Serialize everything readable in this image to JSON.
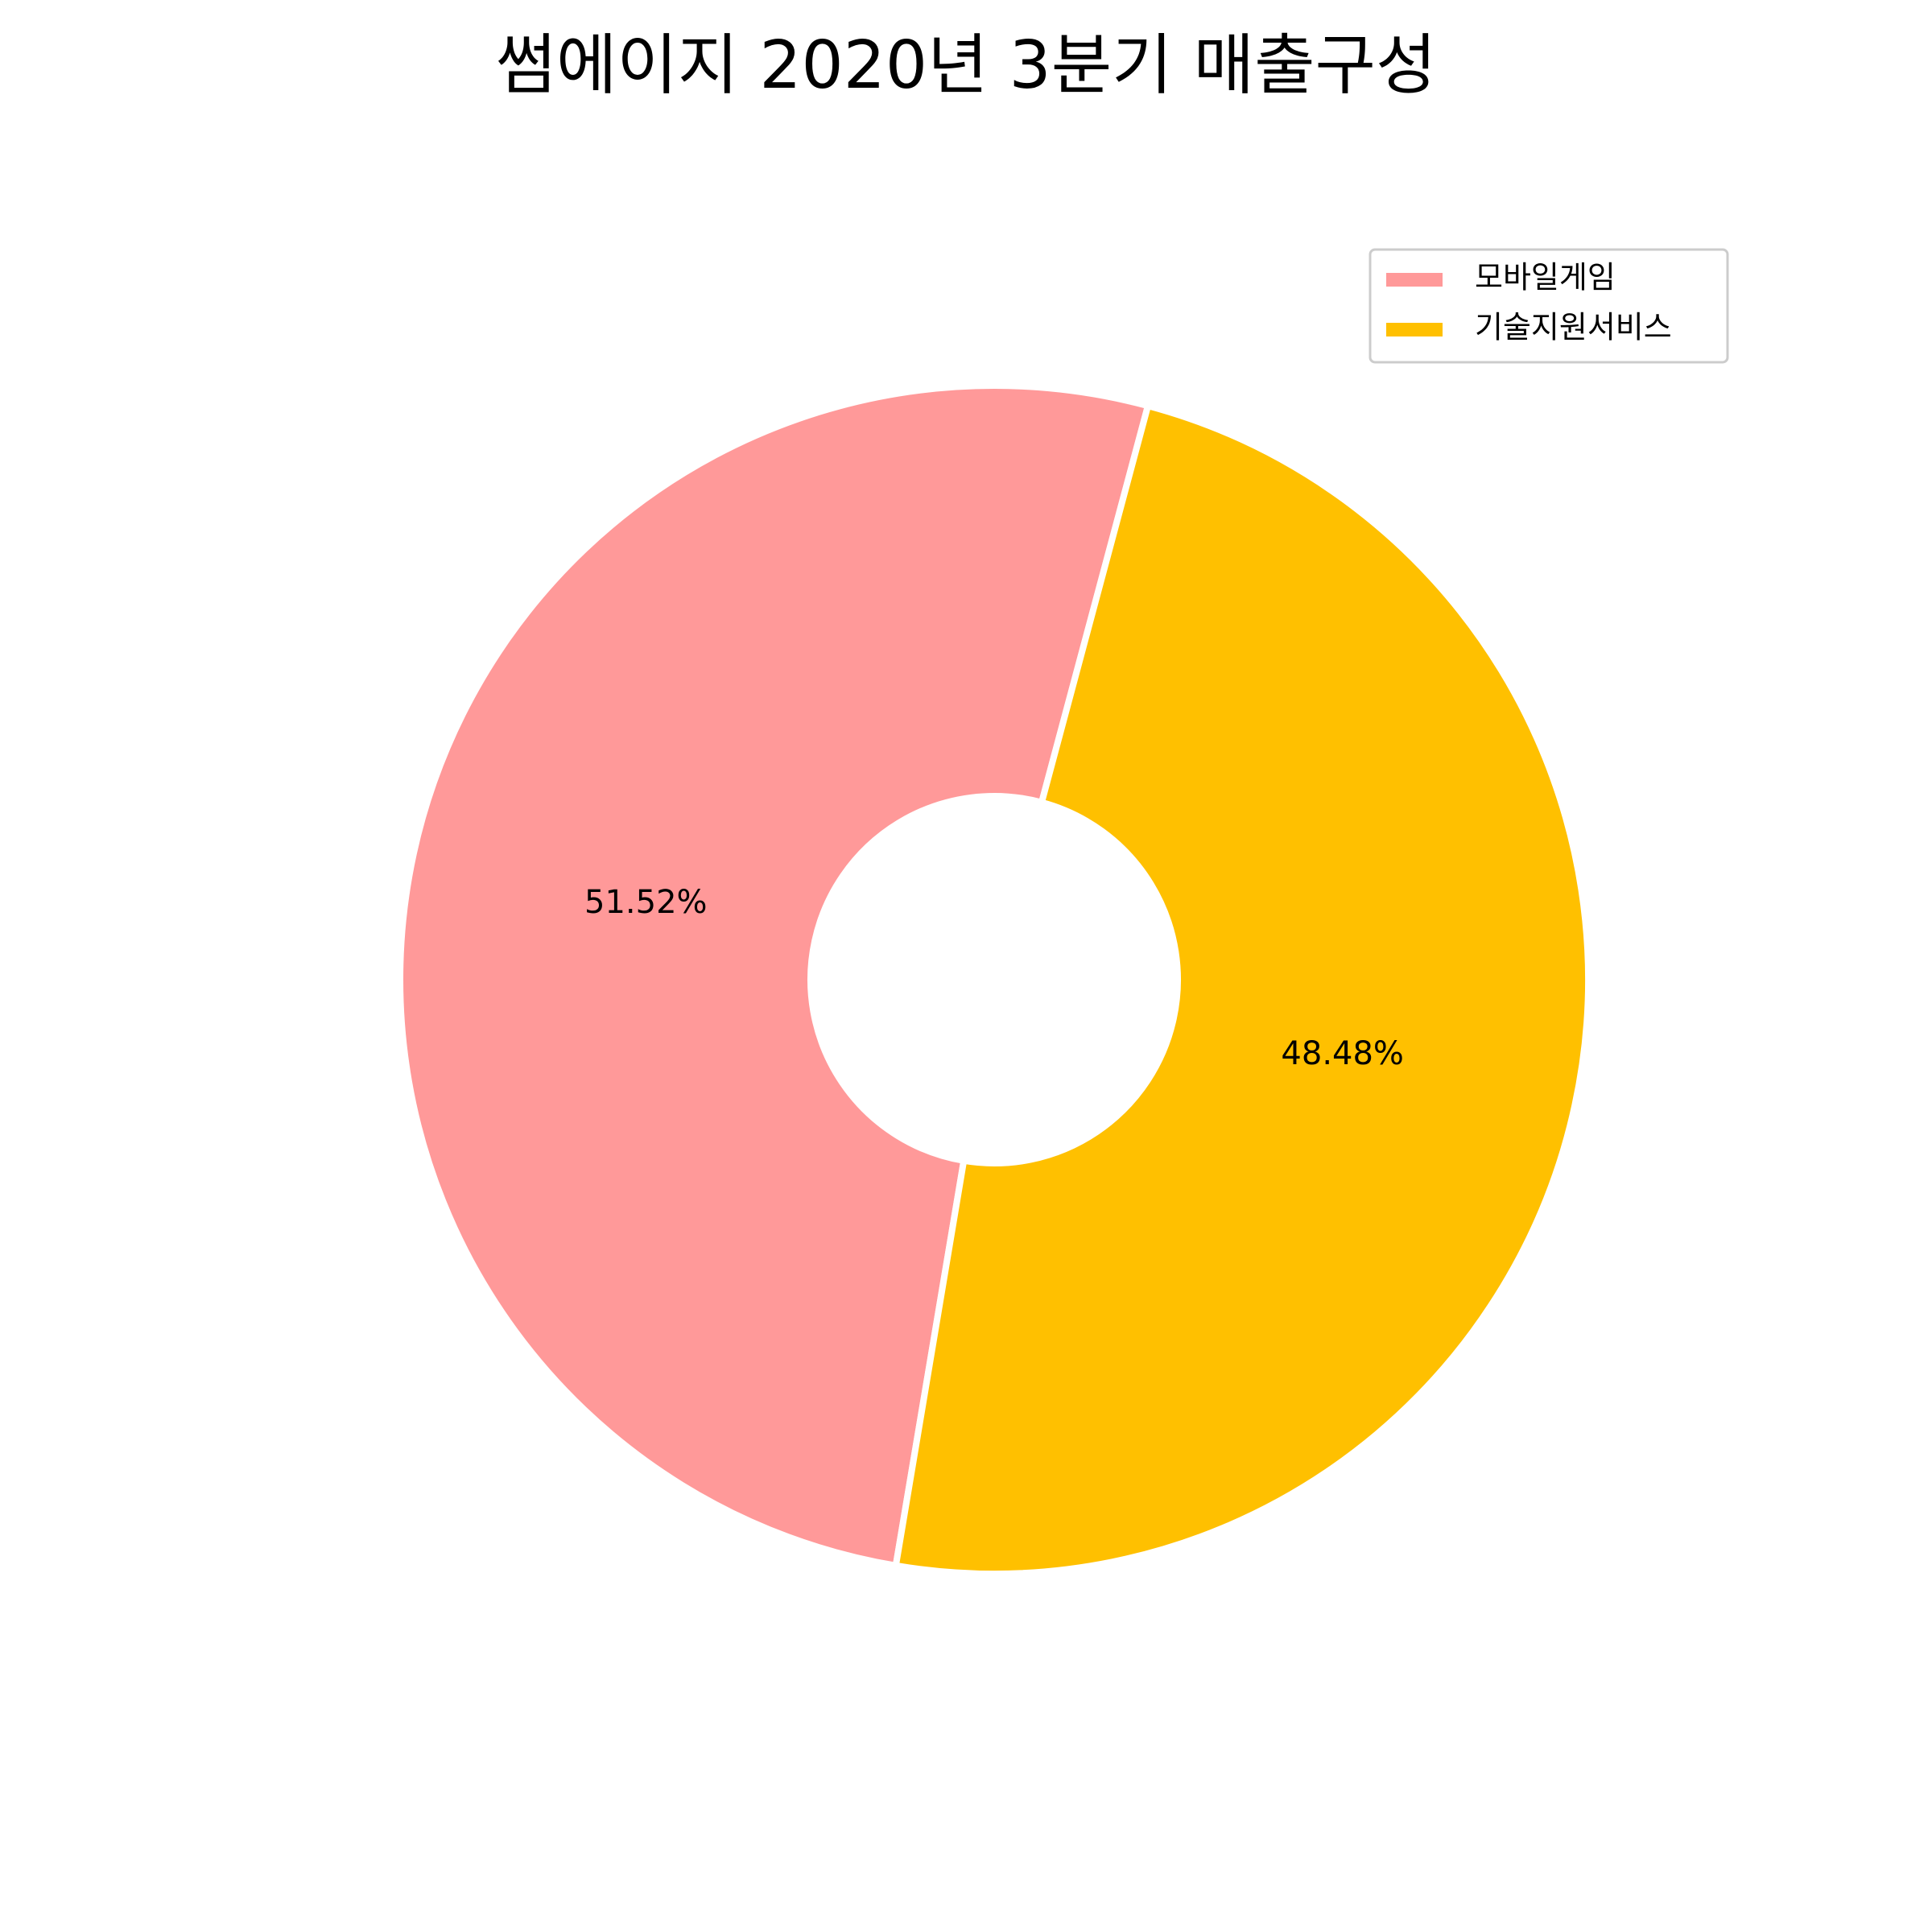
{
  "chart_data": {
    "type": "pie",
    "variant": "donut",
    "title": "썸에이지 2020년 3분기 매출구성",
    "slices": [
      {
        "label": "모바일게임",
        "value": 51.52,
        "value_label": "51.52%",
        "color": "#FF9999"
      },
      {
        "label": "기술지원서비스",
        "value": 48.48,
        "value_label": "48.48%",
        "color": "#FFC000"
      }
    ],
    "legend_position": "upper-right"
  }
}
